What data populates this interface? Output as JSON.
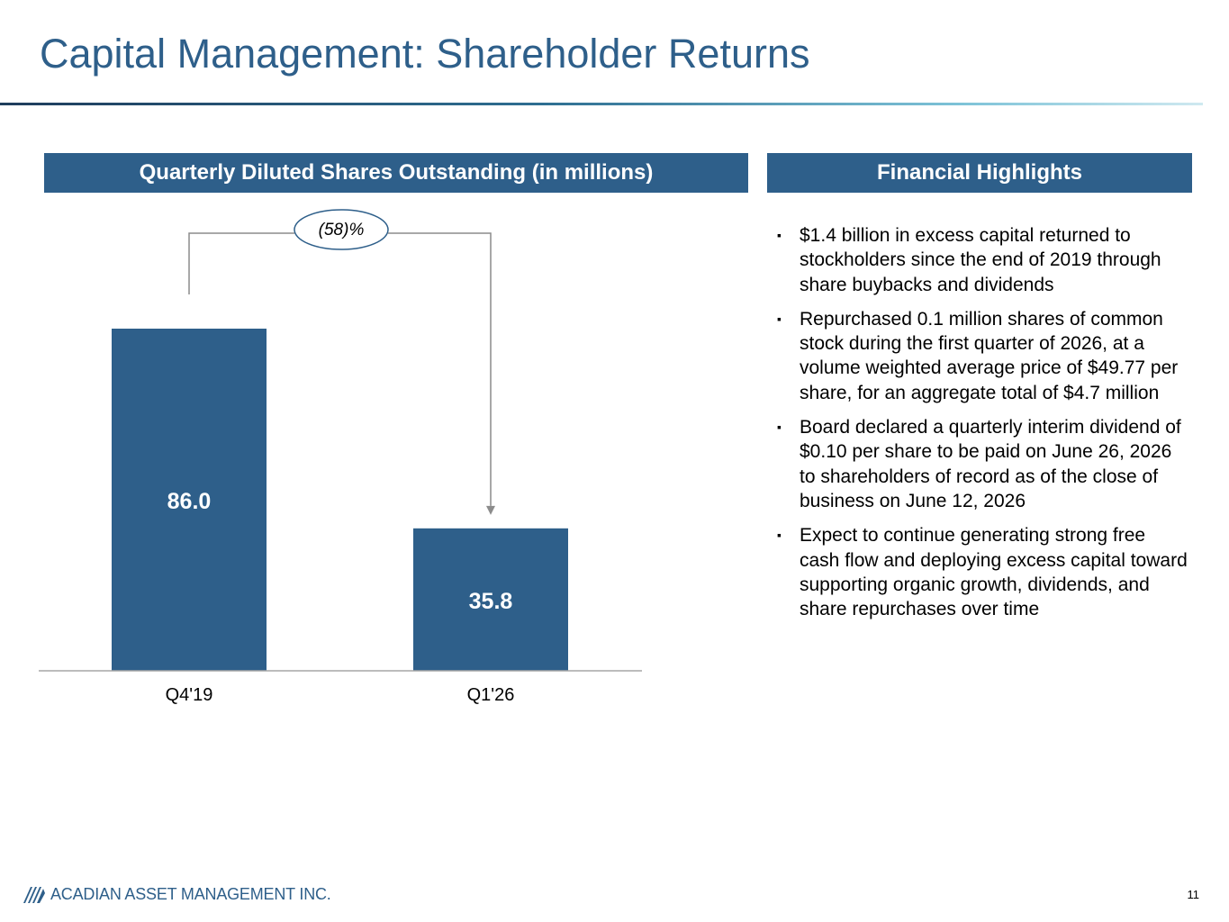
{
  "slide": {
    "title": "Capital Management: Shareholder Returns",
    "page_number": "11"
  },
  "chart_section": {
    "header": "Quarterly Diluted Shares Outstanding (in millions)"
  },
  "highlights": {
    "header": "Financial Highlights",
    "bullet_symbol": "▪",
    "items": [
      "$1.4 billion in excess capital returned to stockholders since the end of 2019 through share buybacks and dividends",
      "Repurchased 0.1 million shares of common stock during the first quarter of 2026, at a volume weighted average price of $49.77 per share, for an aggregate total of $4.7 million",
      "Board declared a quarterly interim dividend of $0.10 per share to be paid on June 26, 2026 to shareholders of record as of the close of business on June 12, 2026",
      "Expect to continue generating strong free cash flow and deploying excess capital toward supporting organic growth, dividends, and share repurchases over time"
    ]
  },
  "chart_data": {
    "type": "bar",
    "title": "Quarterly Diluted Shares Outstanding (in millions)",
    "categories": [
      "Q4'19",
      "Q1'26"
    ],
    "values": [
      86.0,
      35.8
    ],
    "data_labels": [
      "86.0",
      "35.8"
    ],
    "annotation": "(58)%",
    "ylim": [
      0,
      100
    ],
    "grid": false,
    "bar_color": "#2E5F8A",
    "label_color": "#FFFFFF",
    "connector_color": "#8C8C8C"
  },
  "footer": {
    "company": "ACADIAN ASSET MANAGEMENT INC.",
    "logo_icon": "acadian-stripes-logo"
  },
  "colors": {
    "primary": "#2E5F8A",
    "title": "#2E5F8A",
    "rule_gradient": [
      "#1F3D5C",
      "#7EC3D8"
    ]
  }
}
